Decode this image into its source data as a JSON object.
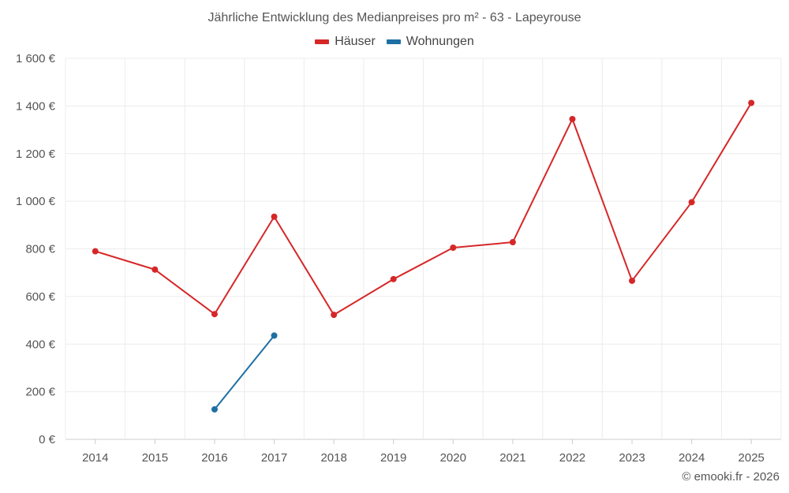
{
  "chart_data": {
    "type": "line",
    "title": "Jährliche Entwicklung des Medianpreises pro m² - 63 - Lapeyrouse",
    "categories": [
      "2014",
      "2015",
      "2016",
      "2017",
      "2018",
      "2019",
      "2020",
      "2021",
      "2022",
      "2023",
      "2024",
      "2025"
    ],
    "ylim": [
      0,
      1600
    ],
    "yticks": [
      0,
      200,
      400,
      600,
      800,
      1000,
      1200,
      1400,
      1600
    ],
    "ytick_labels": [
      "0 €",
      "200 €",
      "400 €",
      "600 €",
      "800 €",
      "1 000 €",
      "1 200 €",
      "1 400 €",
      "1 600 €"
    ],
    "grid": true,
    "legend_position": "top-center",
    "series": [
      {
        "name": "Häuser",
        "color": "#d62728",
        "values": [
          790,
          713,
          526,
          935,
          523,
          673,
          805,
          828,
          1345,
          666,
          996,
          1413
        ]
      },
      {
        "name": "Wohnungen",
        "color": "#1f6fa5",
        "values": [
          null,
          null,
          126,
          436,
          null,
          null,
          null,
          null,
          null,
          null,
          null,
          null
        ]
      }
    ],
    "xlabel": "",
    "ylabel": ""
  },
  "footer": {
    "copyright": "© emooki.fr - 2026"
  }
}
